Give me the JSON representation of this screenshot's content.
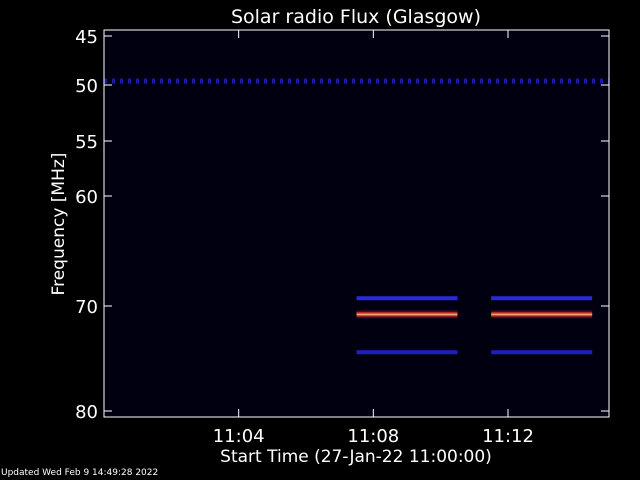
{
  "chart_data": {
    "type": "heatmap",
    "title": "Solar radio Flux (Glasgow)",
    "xlabel": "Start Time (27-Jan-22 11:00:00)",
    "ylabel": "Frequency [MHz]",
    "x_unit": "minutes after 11:00:00",
    "xlim": [
      0,
      15
    ],
    "ylim": [
      80,
      45
    ],
    "y_ticks": [
      "45",
      "50",
      "55",
      "60",
      "70",
      "80"
    ],
    "y_tick_values": [
      45,
      50,
      55,
      60,
      70,
      80
    ],
    "x_ticks": [
      "11:04",
      "11:08",
      "11:12"
    ],
    "x_tick_values": [
      4,
      8,
      12
    ],
    "background_color": "#000010",
    "bands": [
      {
        "freq_mhz": 49.6,
        "start_min": 0,
        "end_min": 15,
        "style": "dotted",
        "color": "#1a1aa8"
      },
      {
        "freq_mhz": 69.3,
        "start_min": 7.5,
        "end_min": 10.5,
        "style": "solid",
        "color": "#2a2ad8"
      },
      {
        "freq_mhz": 69.3,
        "start_min": 11.5,
        "end_min": 14.5,
        "style": "solid",
        "color": "#2a2ad8"
      },
      {
        "freq_mhz": 70.8,
        "start_min": 7.5,
        "end_min": 10.5,
        "style": "hot",
        "color": "#ff3b1a"
      },
      {
        "freq_mhz": 70.8,
        "start_min": 11.5,
        "end_min": 14.5,
        "style": "hot",
        "color": "#ff3b1a"
      },
      {
        "freq_mhz": 74.4,
        "start_min": 7.5,
        "end_min": 10.5,
        "style": "solid",
        "color": "#1e1ec4"
      },
      {
        "freq_mhz": 74.4,
        "start_min": 11.5,
        "end_min": 14.5,
        "style": "solid",
        "color": "#1e1ec4"
      }
    ]
  },
  "footer": "Updated Wed Feb  9 14:49:28 2022"
}
